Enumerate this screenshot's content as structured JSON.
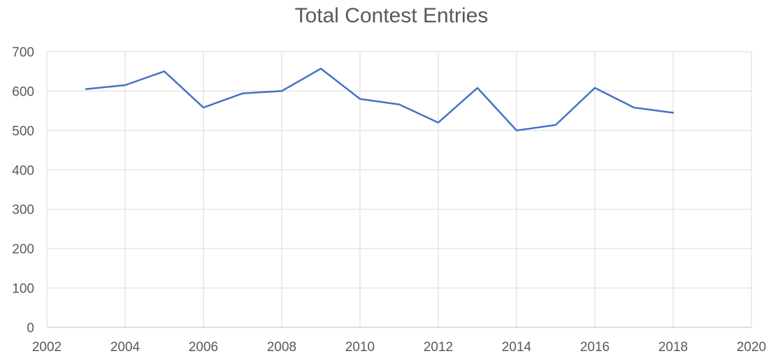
{
  "chart_data": {
    "type": "line",
    "title": "Total Contest Entries",
    "xlabel": "",
    "ylabel": "",
    "xlim": [
      2002,
      2020
    ],
    "ylim": [
      0,
      700
    ],
    "x_ticks": [
      2002,
      2004,
      2006,
      2008,
      2010,
      2012,
      2014,
      2016,
      2018,
      2020
    ],
    "y_ticks": [
      0,
      100,
      200,
      300,
      400,
      500,
      600,
      700
    ],
    "grid": true,
    "legend": "none",
    "series": [
      {
        "color": "#4472c4",
        "x": [
          2003,
          2004,
          2005,
          2006,
          2007,
          2008,
          2009,
          2010,
          2011,
          2012,
          2013,
          2014,
          2015,
          2016,
          2017,
          2018
        ],
        "y": [
          605,
          615,
          650,
          558,
          594,
          600,
          657,
          580,
          566,
          520,
          608,
          500,
          514,
          608,
          558,
          545
        ]
      }
    ]
  }
}
